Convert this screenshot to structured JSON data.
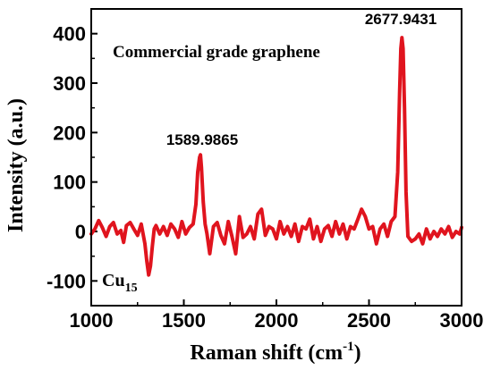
{
  "chart_data": {
    "type": "line",
    "title": "",
    "xlabel_main": "Raman shift (cm",
    "xlabel_sup": "-1",
    "xlabel_end": ")",
    "ylabel": "Intensity (a.u.)",
    "xlim": [
      1000,
      3000
    ],
    "ylim": [
      -150,
      450
    ],
    "x_ticks": [
      1000,
      1500,
      2000,
      2500,
      3000
    ],
    "y_ticks": [
      -100,
      0,
      100,
      200,
      300,
      400
    ],
    "grid": false,
    "series": [
      {
        "color": "#e0141e",
        "x": [
          1000,
          1020,
          1040,
          1060,
          1080,
          1100,
          1120,
          1140,
          1160,
          1175,
          1190,
          1210,
          1230,
          1250,
          1270,
          1290,
          1300,
          1310,
          1320,
          1330,
          1340,
          1350,
          1370,
          1390,
          1410,
          1430,
          1450,
          1470,
          1490,
          1510,
          1530,
          1550,
          1565,
          1575,
          1585,
          1590,
          1595,
          1605,
          1615,
          1625,
          1640,
          1660,
          1680,
          1700,
          1720,
          1740,
          1760,
          1780,
          1800,
          1820,
          1840,
          1860,
          1880,
          1900,
          1920,
          1940,
          1960,
          1980,
          2000,
          2020,
          2040,
          2060,
          2080,
          2100,
          2120,
          2140,
          2160,
          2180,
          2200,
          2220,
          2240,
          2260,
          2280,
          2300,
          2320,
          2340,
          2360,
          2380,
          2400,
          2420,
          2440,
          2460,
          2480,
          2500,
          2520,
          2540,
          2560,
          2580,
          2600,
          2620,
          2640,
          2655,
          2665,
          2672,
          2678,
          2684,
          2692,
          2700,
          2710,
          2730,
          2750,
          2770,
          2790,
          2810,
          2830,
          2850,
          2870,
          2890,
          2910,
          2930,
          2950,
          2970,
          2990,
          3000
        ],
        "y": [
          -5,
          5,
          22,
          8,
          -10,
          10,
          18,
          -5,
          2,
          -22,
          12,
          18,
          5,
          -8,
          15,
          -25,
          -60,
          -88,
          -70,
          -30,
          5,
          12,
          -5,
          10,
          -8,
          15,
          5,
          -12,
          20,
          -5,
          8,
          15,
          55,
          120,
          150,
          155,
          130,
          60,
          15,
          -5,
          -45,
          10,
          18,
          -8,
          -25,
          20,
          -10,
          -45,
          30,
          -12,
          -5,
          10,
          -15,
          35,
          45,
          -8,
          10,
          5,
          -15,
          20,
          -5,
          10,
          -10,
          15,
          -20,
          10,
          5,
          25,
          -15,
          10,
          -20,
          5,
          12,
          -10,
          20,
          -5,
          15,
          -15,
          10,
          5,
          25,
          45,
          30,
          5,
          10,
          -25,
          5,
          15,
          -10,
          20,
          30,
          120,
          280,
          370,
          392,
          370,
          250,
          80,
          -10,
          -20,
          -15,
          -5,
          -25,
          5,
          -15,
          0,
          -10,
          5,
          -5,
          10,
          -12,
          0,
          -5,
          8
        ]
      }
    ],
    "annotations": {
      "peak1": "1589.9865",
      "peak2": "2677.9431",
      "sample": "Commercial grade graphene",
      "cu_main": "Cu",
      "cu_sub": "15"
    }
  }
}
